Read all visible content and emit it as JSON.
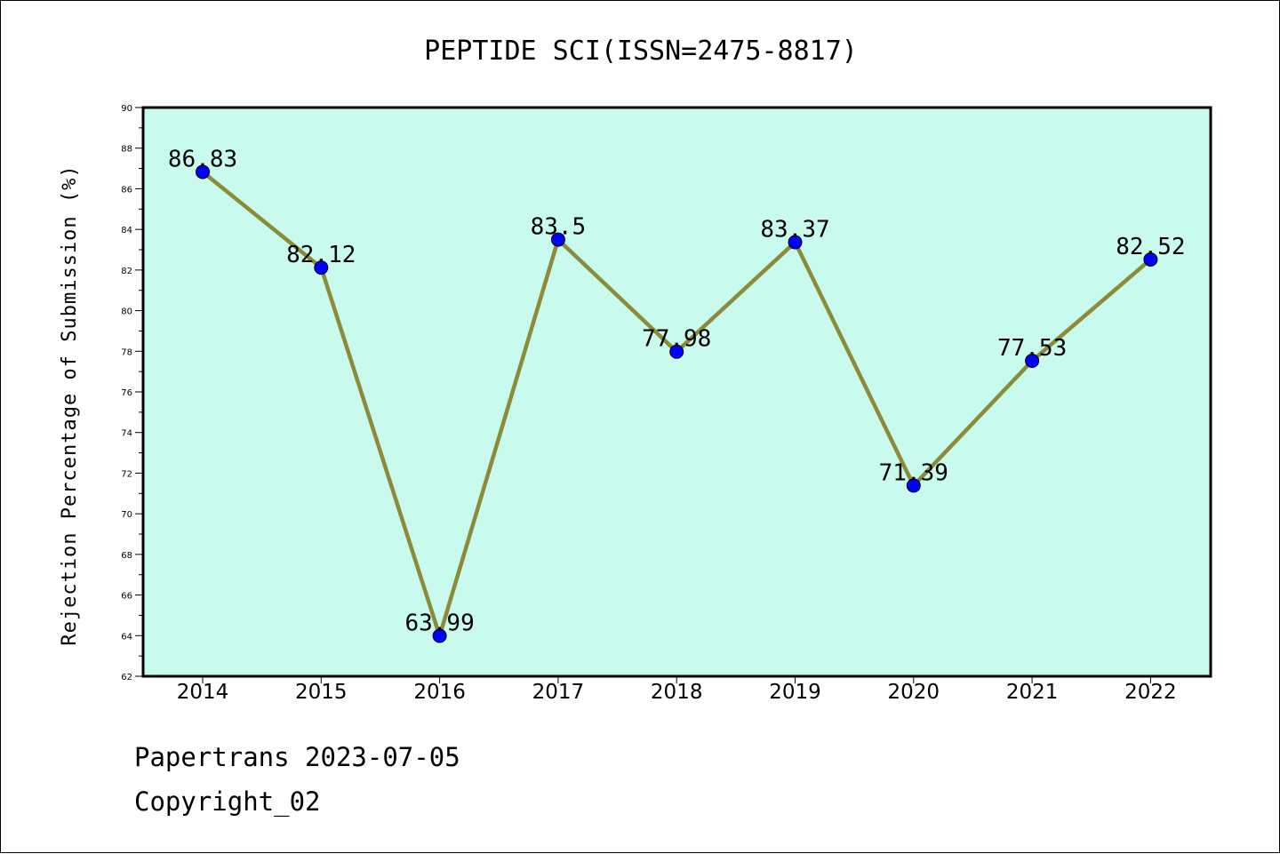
{
  "chart_data": {
    "type": "line",
    "title": "PEPTIDE SCI(ISSN=2475-8817)",
    "xlabel": "",
    "ylabel": "Rejection Percentage of Submission (%)",
    "categories": [
      "2014",
      "2015",
      "2016",
      "2017",
      "2018",
      "2019",
      "2020",
      "2021",
      "2022"
    ],
    "series": [
      {
        "values": [
          86.83,
          82.12,
          63.99,
          83.5,
          77.98,
          83.37,
          71.39,
          77.53,
          82.52
        ],
        "labels": [
          "86.83",
          "82.12",
          "63.99",
          "83.5",
          "77.98",
          "83.37",
          "71.39",
          "77.53",
          "82.52"
        ]
      }
    ],
    "ylim": [
      62,
      90
    ],
    "yticks": [
      "62",
      "64",
      "66",
      "68",
      "70",
      "72",
      "74",
      "76",
      "78",
      "80",
      "82",
      "84",
      "86",
      "88",
      "90"
    ],
    "grid": false,
    "colors": {
      "plot_background": "#c8fbee",
      "line": "#8b8b3a",
      "marker": "#0000ff"
    }
  },
  "footer": {
    "line1": "Papertrans 2023-07-05",
    "line2": "Copyright_02"
  }
}
